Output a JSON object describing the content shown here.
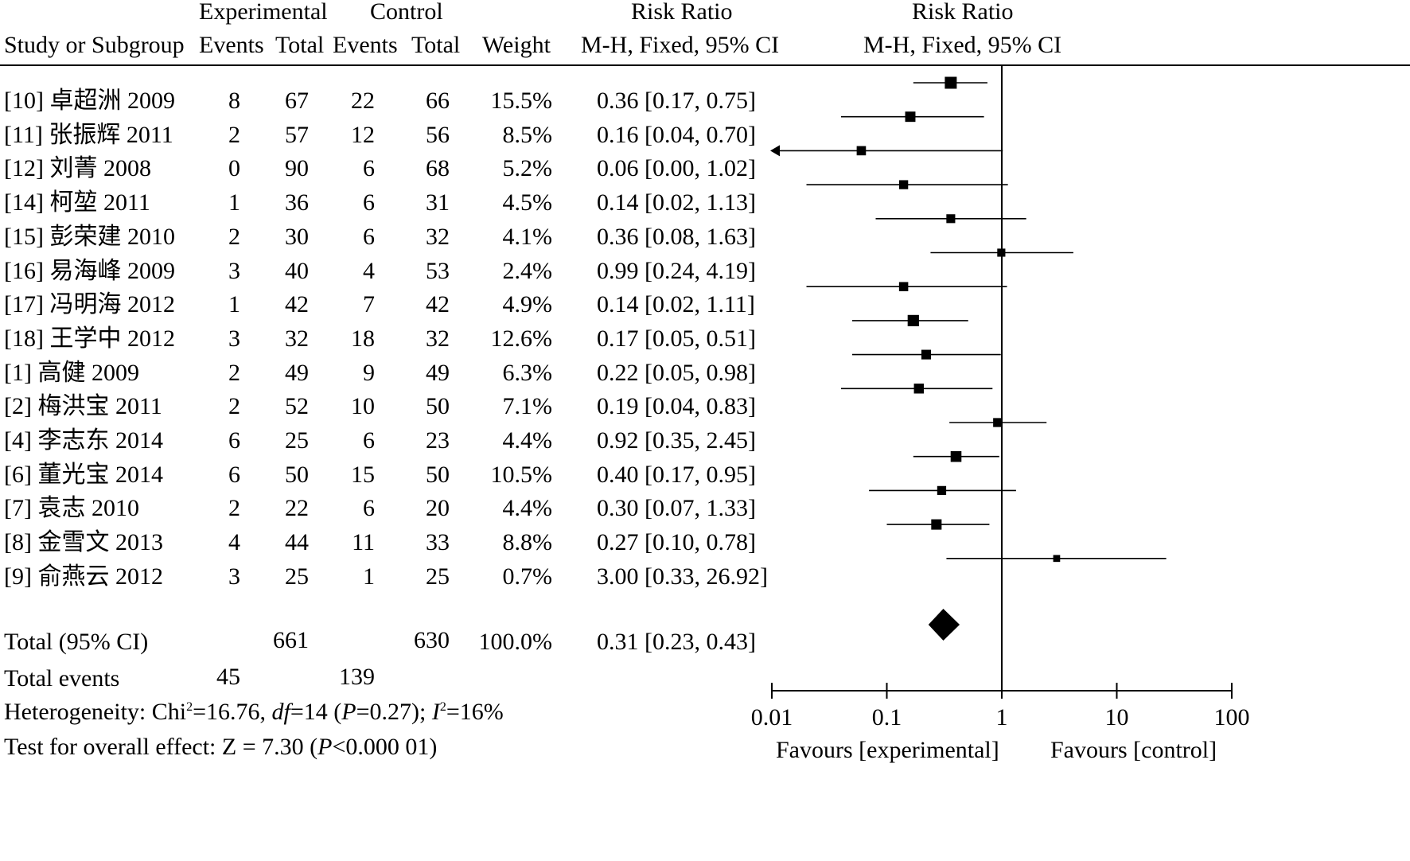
{
  "chart_data": {
    "type": "forest",
    "header": {
      "group1": "Experimental",
      "group2": "Control",
      "rr_top": "Risk Ratio",
      "rr_plot_top": "Risk Ratio",
      "study_col": "Study or Subgroup",
      "events1": "Events",
      "total1": "Total",
      "events2": "Events",
      "total2": "Total",
      "weight": "Weight",
      "method": "M-H, Fixed, 95% CI",
      "method_plot": "M-H, Fixed, 95% CI"
    },
    "studies": [
      {
        "name": "[10] 卓超洲 2009",
        "e1": "8",
        "t1": "67",
        "e2": "22",
        "t2": "66",
        "weight": "15.5%",
        "ci_text": "0.36 [0.17, 0.75]",
        "rr": 0.36,
        "lo": 0.17,
        "hi": 0.75
      },
      {
        "name": "[11] 张振辉 2011",
        "e1": "2",
        "t1": "57",
        "e2": "12",
        "t2": "56",
        "weight": "8.5%",
        "ci_text": "0.16 [0.04, 0.70]",
        "rr": 0.16,
        "lo": 0.04,
        "hi": 0.7
      },
      {
        "name": "[12] 刘菁 2008",
        "e1": "0",
        "t1": "90",
        "e2": "6",
        "t2": "68",
        "weight": "5.2%",
        "ci_text": "0.06 [0.00, 1.02]",
        "rr": 0.06,
        "lo": 0.0,
        "hi": 1.02
      },
      {
        "name": "[14] 柯堃 2011",
        "e1": "1",
        "t1": "36",
        "e2": "6",
        "t2": "31",
        "weight": "4.5%",
        "ci_text": "0.14 [0.02, 1.13]",
        "rr": 0.14,
        "lo": 0.02,
        "hi": 1.13
      },
      {
        "name": "[15] 彭荣建 2010",
        "e1": "2",
        "t1": "30",
        "e2": "6",
        "t2": "32",
        "weight": "4.1%",
        "ci_text": "0.36 [0.08, 1.63]",
        "rr": 0.36,
        "lo": 0.08,
        "hi": 1.63
      },
      {
        "name": "[16] 易海峰 2009",
        "e1": "3",
        "t1": "40",
        "e2": "4",
        "t2": "53",
        "weight": "2.4%",
        "ci_text": "0.99 [0.24, 4.19]",
        "rr": 0.99,
        "lo": 0.24,
        "hi": 4.19
      },
      {
        "name": "[17] 冯明海 2012",
        "e1": "1",
        "t1": "42",
        "e2": "7",
        "t2": "42",
        "weight": "4.9%",
        "ci_text": "0.14 [0.02, 1.11]",
        "rr": 0.14,
        "lo": 0.02,
        "hi": 1.11
      },
      {
        "name": "[18] 王学中 2012",
        "e1": "3",
        "t1": "32",
        "e2": "18",
        "t2": "32",
        "weight": "12.6%",
        "ci_text": "0.17 [0.05, 0.51]",
        "rr": 0.17,
        "lo": 0.05,
        "hi": 0.51
      },
      {
        "name": "[1] 高健 2009",
        "e1": "2",
        "t1": "49",
        "e2": "9",
        "t2": "49",
        "weight": "6.3%",
        "ci_text": "0.22 [0.05, 0.98]",
        "rr": 0.22,
        "lo": 0.05,
        "hi": 0.98
      },
      {
        "name": "[2] 梅洪宝 2011",
        "e1": "2",
        "t1": "52",
        "e2": "10",
        "t2": "50",
        "weight": "7.1%",
        "ci_text": "0.19 [0.04, 0.83]",
        "rr": 0.19,
        "lo": 0.04,
        "hi": 0.83
      },
      {
        "name": "[4] 李志东 2014",
        "e1": "6",
        "t1": "25",
        "e2": "6",
        "t2": "23",
        "weight": "4.4%",
        "ci_text": "0.92 [0.35, 2.45]",
        "rr": 0.92,
        "lo": 0.35,
        "hi": 2.45
      },
      {
        "name": "[6] 董光宝 2014",
        "e1": "6",
        "t1": "50",
        "e2": "15",
        "t2": "50",
        "weight": "10.5%",
        "ci_text": "0.40 [0.17, 0.95]",
        "rr": 0.4,
        "lo": 0.17,
        "hi": 0.95
      },
      {
        "name": "[7] 袁志 2010",
        "e1": "2",
        "t1": "22",
        "e2": "6",
        "t2": "20",
        "weight": "4.4%",
        "ci_text": "0.30 [0.07, 1.33]",
        "rr": 0.3,
        "lo": 0.07,
        "hi": 1.33
      },
      {
        "name": "[8] 金雪文 2013",
        "e1": "4",
        "t1": "44",
        "e2": "11",
        "t2": "33",
        "weight": "8.8%",
        "ci_text": "0.27 [0.10, 0.78]",
        "rr": 0.27,
        "lo": 0.1,
        "hi": 0.78
      },
      {
        "name": "[9] 俞燕云 2012",
        "e1": "3",
        "t1": "25",
        "e2": "1",
        "t2": "25",
        "weight": "0.7%",
        "ci_text": "3.00 [0.33, 26.92]",
        "rr": 3.0,
        "lo": 0.33,
        "hi": 26.92
      }
    ],
    "total": {
      "label": "Total (95% CI)",
      "t1": "661",
      "t2": "630",
      "weight": "100.0%",
      "ci_text": "0.31 [0.23, 0.43]",
      "rr": 0.31,
      "lo": 0.23,
      "hi": 0.43
    },
    "total_events": {
      "label": "Total events",
      "e1": "45",
      "e2": "139"
    },
    "heterogeneity": {
      "prefix": "Heterogeneity: Chi",
      "sup1": "2",
      "chi_val": "=16.76, ",
      "df": "df",
      "df_val": "=14 (",
      "p": "P",
      "p_val": "=0.27); ",
      "i": "I",
      "sup2": "2",
      "i_val": "=16%"
    },
    "overall": {
      "prefix": "Test for overall effect: Z = 7.30 (",
      "p": "P",
      "p_val": "<0.000 01)"
    },
    "axis": {
      "scale": "log",
      "range": [
        0.01,
        100
      ],
      "ticks": [
        0.01,
        0.1,
        1,
        10,
        100
      ],
      "tick_labels": [
        "0.01",
        "0.1",
        "1",
        "10",
        "100"
      ],
      "null_line": 1,
      "favours_left": "Favours [experimental]",
      "favours_right": "Favours [control]"
    }
  }
}
